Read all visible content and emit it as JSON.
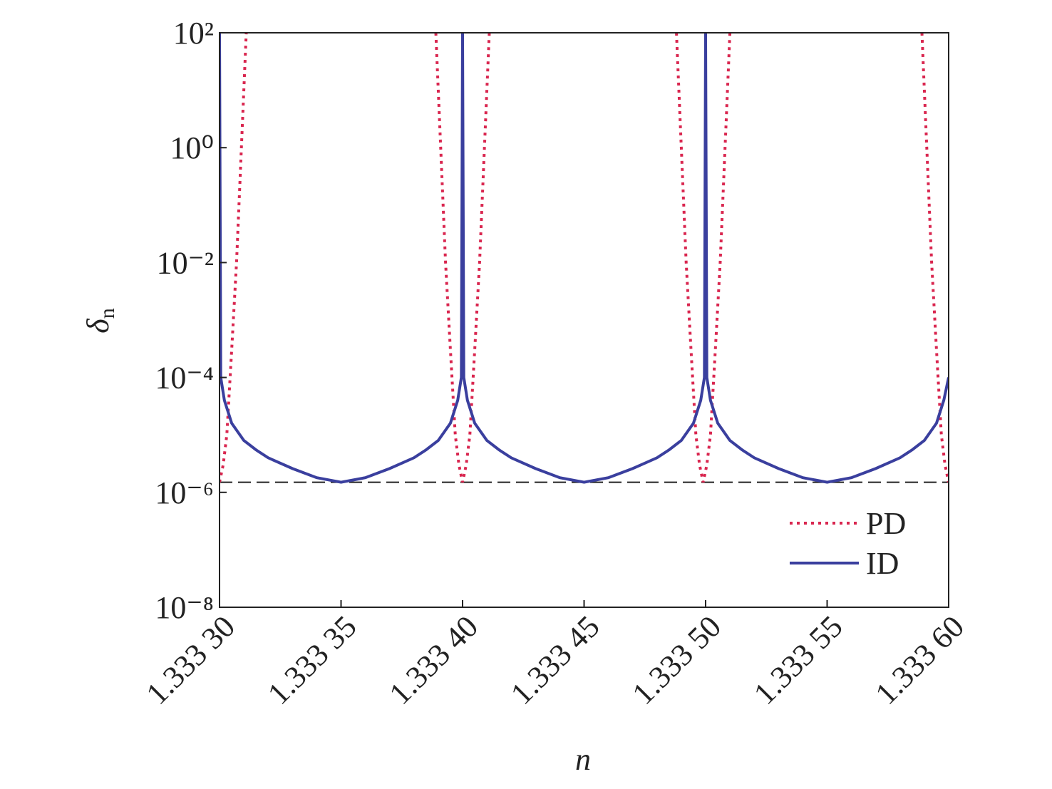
{
  "chart_data": {
    "type": "line",
    "x_label": "n",
    "y_label": "δ",
    "y_label_sub": "n",
    "log_y": true,
    "xlim": [
      1.3333,
      1.3336
    ],
    "xticks": [
      {
        "value": 1.3333,
        "label": "1.333 30"
      },
      {
        "value": 1.33335,
        "label": "1.333 35"
      },
      {
        "value": 1.3334,
        "label": "1.333 40"
      },
      {
        "value": 1.33345,
        "label": "1.333 45"
      },
      {
        "value": 1.3335,
        "label": "1.333 50"
      },
      {
        "value": 1.33355,
        "label": "1.333 55"
      },
      {
        "value": 1.3336,
        "label": "1.333 60"
      }
    ],
    "ylim": [
      1e-08,
      100
    ],
    "yticks": [
      {
        "value": 100,
        "label": "10²"
      },
      {
        "value": 1,
        "label": "10⁰"
      },
      {
        "value": 0.01,
        "label": "10⁻²"
      },
      {
        "value": 0.0001,
        "label": "10⁻⁴"
      },
      {
        "value": 1e-06,
        "label": "10⁻⁶"
      },
      {
        "value": 1e-08,
        "label": "10⁻⁸"
      }
    ],
    "hline": 1.5e-06,
    "legend": "lower right",
    "series": [
      {
        "name": "PD",
        "color": "#d9264f",
        "dash": "dotted",
        "x": [
          1.3333,
          1.3333015,
          1.333303,
          1.333305,
          1.333307,
          1.333309,
          1.333311,
          1.33335,
          1.333389,
          1.333391,
          1.333393,
          1.333395,
          1.333397,
          1.3333985,
          1.3334,
          1.3334015,
          1.333403,
          1.333405,
          1.333407,
          1.333409,
          1.333411,
          1.33345,
          1.333488,
          1.33349,
          1.333492,
          1.333494,
          1.333496,
          1.3334975,
          1.333499,
          1.3335005,
          1.333502,
          1.333504,
          1.333506,
          1.333508,
          1.33351,
          1.33355,
          1.333589,
          1.333591,
          1.333593,
          1.333595,
          1.333597,
          1.3335985,
          1.3336
        ],
        "values": [
          1.5e-06,
          3e-06,
          1e-05,
          0.0003,
          0.01,
          1,
          100,
          null,
          100,
          1,
          0.01,
          0.0003,
          1e-05,
          3e-06,
          1.5e-06,
          3e-06,
          1e-05,
          0.0003,
          0.01,
          1,
          100,
          null,
          100,
          1,
          0.01,
          0.0003,
          1e-05,
          3e-06,
          1.5e-06,
          3e-06,
          1e-05,
          0.0003,
          0.01,
          1,
          100,
          null,
          100,
          1,
          0.01,
          0.0003,
          1e-05,
          3e-06,
          1.5e-06
        ]
      },
      {
        "name": "ID",
        "color": "#3a3f9e",
        "dash": "solid",
        "x": [
          1.3333,
          1.3333005,
          1.333302,
          1.333305,
          1.33331,
          1.333315,
          1.33332,
          1.33333,
          1.33334,
          1.33335,
          1.33336,
          1.33337,
          1.33338,
          1.333385,
          1.33339,
          1.333395,
          1.333398,
          1.3333995,
          1.3334,
          1.3334005,
          1.333402,
          1.333405,
          1.33341,
          1.333415,
          1.33342,
          1.33343,
          1.33344,
          1.33345,
          1.33346,
          1.33347,
          1.33348,
          1.333485,
          1.33349,
          1.333495,
          1.333498,
          1.3334995,
          1.3335,
          1.3335005,
          1.333502,
          1.333505,
          1.33351,
          1.333515,
          1.33352,
          1.33353,
          1.33354,
          1.33355,
          1.33356,
          1.33357,
          1.33358,
          1.333585,
          1.33359,
          1.333595,
          1.333598,
          1.3336
        ],
        "values": [
          100,
          0.0001,
          4e-05,
          1.6e-05,
          8e-06,
          5.5e-06,
          4e-06,
          2.6e-06,
          1.8e-06,
          1.5e-06,
          1.8e-06,
          2.6e-06,
          4e-06,
          5.5e-06,
          8e-06,
          1.6e-05,
          4e-05,
          0.0001,
          100,
          0.0001,
          4e-05,
          1.6e-05,
          8e-06,
          5.5e-06,
          4e-06,
          2.6e-06,
          1.8e-06,
          1.5e-06,
          1.8e-06,
          2.6e-06,
          4e-06,
          5.5e-06,
          8e-06,
          1.6e-05,
          4e-05,
          0.0001,
          100,
          0.0001,
          4e-05,
          1.6e-05,
          8e-06,
          5.5e-06,
          4e-06,
          2.6e-06,
          1.8e-06,
          1.5e-06,
          1.8e-06,
          2.6e-06,
          4e-06,
          5.5e-06,
          8e-06,
          1.6e-05,
          4e-05,
          0.0001
        ]
      }
    ]
  }
}
